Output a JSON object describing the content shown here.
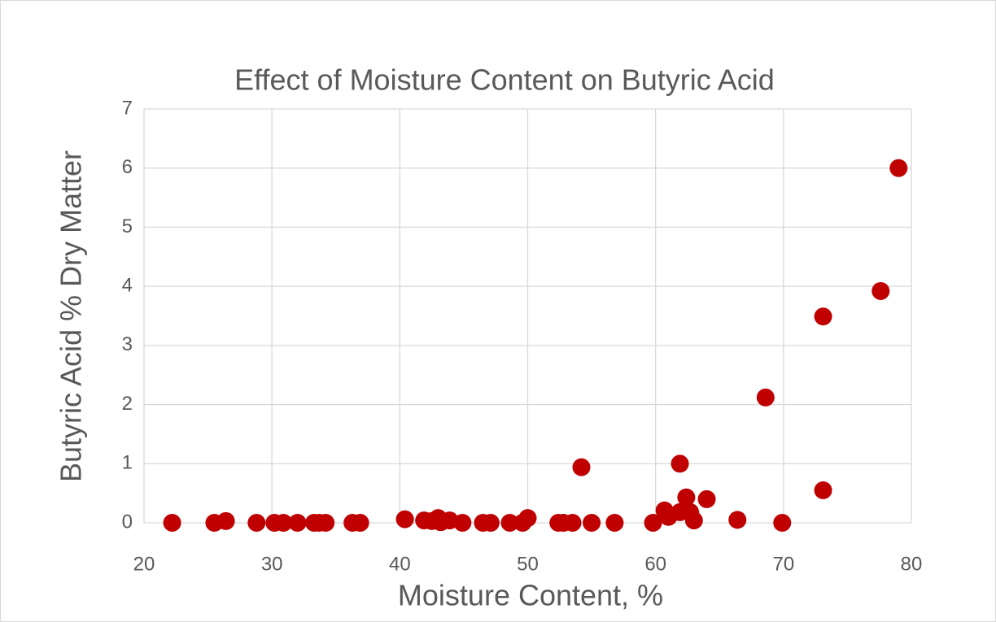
{
  "chart_data": {
    "type": "scatter",
    "title": "Effect of Moisture Content on Butyric Acid",
    "xlabel": "Moisture Content, %",
    "ylabel": "Butyric Acid % Dry Matter",
    "series": [
      {
        "color": "#c00000",
        "x": [
          22.2,
          25.5,
          26.4,
          28.8,
          30.2,
          30.9,
          32.0,
          33.3,
          33.7,
          34.2,
          36.3,
          36.9,
          40.4,
          41.9,
          42.5,
          43.0,
          43.2,
          43.9,
          44.9,
          46.5,
          47.1,
          48.6,
          49.6,
          50.0,
          52.4,
          52.8,
          53.5,
          54.2,
          55.0,
          56.8,
          59.8,
          60.7,
          61.0,
          61.9,
          61.9,
          62.4,
          62.7,
          63.0,
          64.0,
          66.4,
          68.6,
          69.9,
          73.1,
          73.1,
          77.6,
          79.0
        ],
        "values": [
          0,
          0,
          0.03,
          0,
          0,
          0,
          0,
          0,
          0,
          0,
          0,
          0,
          0.06,
          0.04,
          0.03,
          0.08,
          0.01,
          0.04,
          0,
          0,
          0,
          0,
          0,
          0.08,
          0,
          0,
          0,
          0.94,
          0,
          0,
          0,
          0.21,
          0.1,
          1.0,
          0.18,
          0.43,
          0.18,
          0.04,
          0.4,
          0.05,
          2.12,
          0,
          0.55,
          3.49,
          3.92,
          6.0
        ]
      }
    ],
    "xlim": [
      20,
      80
    ],
    "xticks": [
      20,
      30,
      40,
      50,
      60,
      70,
      80
    ],
    "ylim": [
      0,
      7
    ],
    "yticks": [
      0,
      1,
      2,
      3,
      4,
      5,
      6,
      7
    ],
    "grid": true
  }
}
